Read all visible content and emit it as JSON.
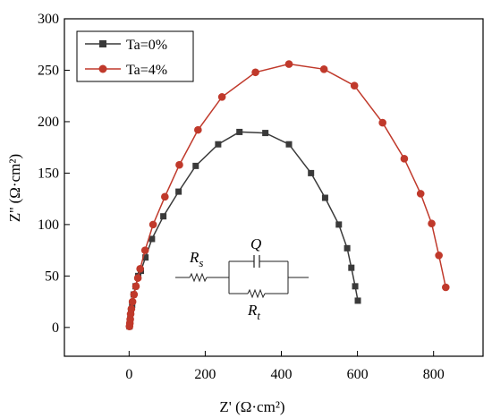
{
  "chart_data": {
    "type": "scatter",
    "xlabel": "Z' (Ω·cm²)",
    "ylabel": "Z'' (Ω·cm²)",
    "xlim": [
      -170,
      930
    ],
    "ylim": [
      -28,
      300
    ],
    "xticks": [
      0,
      200,
      400,
      600,
      800
    ],
    "yticks": [
      0,
      50,
      100,
      150,
      200,
      250,
      300
    ],
    "grid": false,
    "legend_position": "top-left",
    "series": [
      {
        "name": "Ta=0%",
        "color": "#3a3a3a",
        "marker": "square",
        "points": [
          [
            1,
            1
          ],
          [
            2,
            4
          ],
          [
            3,
            8
          ],
          [
            5,
            15
          ],
          [
            8,
            22
          ],
          [
            12,
            32
          ],
          [
            17,
            40
          ],
          [
            24,
            50
          ],
          [
            31,
            55
          ],
          [
            43,
            68
          ],
          [
            60,
            86
          ],
          [
            90,
            108
          ],
          [
            130,
            132
          ],
          [
            175,
            157
          ],
          [
            234,
            178
          ],
          [
            290,
            190
          ],
          [
            358,
            189
          ],
          [
            420,
            178
          ],
          [
            478,
            150
          ],
          [
            515,
            126
          ],
          [
            551,
            100
          ],
          [
            573,
            77
          ],
          [
            584,
            58
          ],
          [
            594,
            40
          ],
          [
            601,
            26
          ]
        ]
      },
      {
        "name": "Ta=4%",
        "color": "#c0392b",
        "marker": "circle",
        "points": [
          [
            1,
            1
          ],
          [
            2,
            4
          ],
          [
            3,
            8
          ],
          [
            4,
            13
          ],
          [
            6,
            18
          ],
          [
            9,
            25
          ],
          [
            13,
            32
          ],
          [
            18,
            40
          ],
          [
            23,
            48
          ],
          [
            29,
            57
          ],
          [
            42,
            75
          ],
          [
            63,
            100
          ],
          [
            94,
            127
          ],
          [
            132,
            158
          ],
          [
            181,
            192
          ],
          [
            244,
            224
          ],
          [
            332,
            248
          ],
          [
            420,
            256
          ],
          [
            512,
            251
          ],
          [
            592,
            235
          ],
          [
            666,
            199
          ],
          [
            723,
            164
          ],
          [
            766,
            130
          ],
          [
            795,
            101
          ],
          [
            814,
            70
          ],
          [
            832,
            39
          ]
        ]
      }
    ],
    "inset": {
      "label_rs_main": "R",
      "label_rs_sub": "s",
      "label_q": "Q",
      "label_rt_main": "R",
      "label_rt_sub": "t"
    }
  }
}
